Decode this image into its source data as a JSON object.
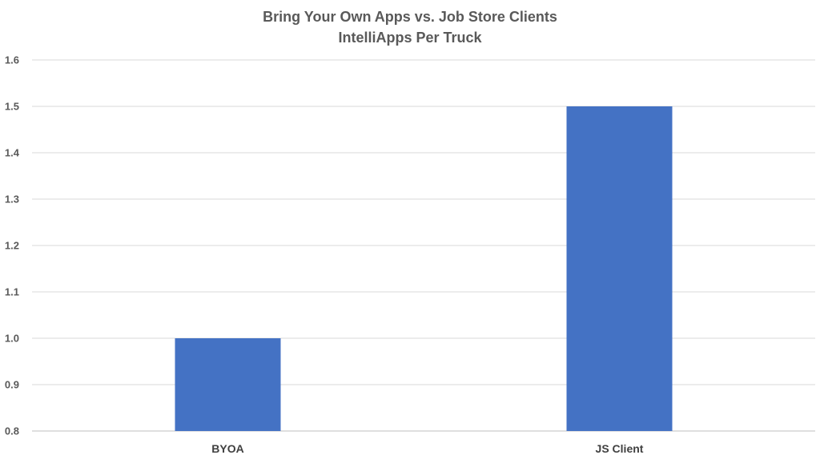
{
  "chart_data": {
    "type": "bar",
    "title": "Bring Your Own Apps vs. Job Store Clients",
    "subtitle": "IntelliApps Per Truck",
    "xlabel": "",
    "ylabel": "",
    "categories": [
      "BYOA",
      "JS Client"
    ],
    "values": [
      1.0,
      1.5
    ],
    "ylim": [
      0.8,
      1.6
    ],
    "yticks": [
      "0.8",
      "0.9",
      "1.0",
      "1.1",
      "1.2",
      "1.3",
      "1.4",
      "1.5",
      "1.6"
    ],
    "grid": true,
    "legend": "none",
    "bar_color": "#4472C4"
  }
}
